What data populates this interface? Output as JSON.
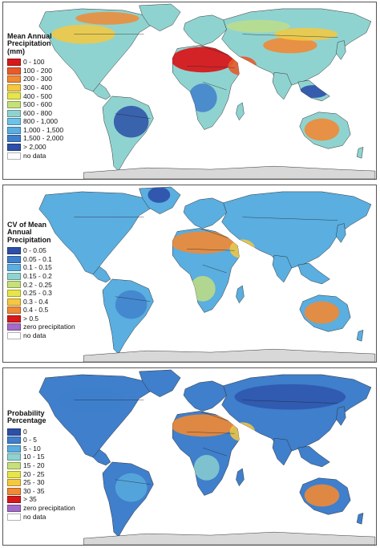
{
  "palettes": {
    "precip": [
      "#d7191c",
      "#e85a2a",
      "#f08a35",
      "#f6c83e",
      "#e6e64a",
      "#c6e07a",
      "#8fd3d0",
      "#5aaee0",
      "#3f7fcc",
      "#2c4fa8"
    ],
    "cv": [
      "#2c4fa8",
      "#3f7fcc",
      "#5aaee0",
      "#8fd3d0",
      "#c6e07a",
      "#e6e64a",
      "#f6c83e",
      "#f08a35",
      "#d7191c"
    ],
    "ocean": "#ffffff",
    "antarctica": "#d8d8d8",
    "zero_precip": "#a46bc7",
    "no_data": "#ffffff"
  },
  "panels": [
    {
      "legend_title": "Mean Annual\nPrecipitation\n(mm)",
      "legend": [
        {
          "label": "0 - 100",
          "color": "#d7191c"
        },
        {
          "label": "100 - 200",
          "color": "#e85a2a"
        },
        {
          "label": "200 - 300",
          "color": "#f08a35"
        },
        {
          "label": "300 - 400",
          "color": "#f6c83e"
        },
        {
          "label": "400 - 500",
          "color": "#e6e64a"
        },
        {
          "label": "500 - 600",
          "color": "#c6e07a"
        },
        {
          "label": "600 - 800",
          "color": "#8fd3d0"
        },
        {
          "label": "800 - 1,000",
          "color": "#6cc2e8"
        },
        {
          "label": "1,000 - 1,500",
          "color": "#5aaee0"
        },
        {
          "label": "1,500 - 2,000",
          "color": "#3f7fcc"
        },
        {
          "label": "> 2,000",
          "color": "#2c4fa8"
        },
        {
          "label": "no data",
          "color": "#ffffff"
        }
      ]
    },
    {
      "legend_title": "CV of Mean\nAnnual\nPrecipitation",
      "legend": [
        {
          "label": "0 - 0.05",
          "color": "#2c4fa8"
        },
        {
          "label": "0.05 - 0.1",
          "color": "#3f7fcc"
        },
        {
          "label": "0.1 - 0.15",
          "color": "#5aaee0"
        },
        {
          "label": "0.15 - 0.2",
          "color": "#8fd3d0"
        },
        {
          "label": "0.2 - 0.25",
          "color": "#c6e07a"
        },
        {
          "label": "0.25 - 0.3",
          "color": "#e6e64a"
        },
        {
          "label": "0.3 - 0.4",
          "color": "#f6c83e"
        },
        {
          "label": "0.4 - 0.5",
          "color": "#f08a35"
        },
        {
          "label": "> 0.5",
          "color": "#d7191c"
        },
        {
          "label": "zero precipitation",
          "color": "#a46bc7"
        },
        {
          "label": "no data",
          "color": "#ffffff"
        }
      ]
    },
    {
      "legend_title": "Probability\nPercentage",
      "legend": [
        {
          "label": "0",
          "color": "#2c4fa8"
        },
        {
          "label": "0 - 5",
          "color": "#3f7fcc"
        },
        {
          "label": "5 - 10",
          "color": "#5aaee0"
        },
        {
          "label": "10 - 15",
          "color": "#8fd3d0"
        },
        {
          "label": "15 - 20",
          "color": "#c6e07a"
        },
        {
          "label": "20 - 25",
          "color": "#e6e64a"
        },
        {
          "label": "25 - 30",
          "color": "#f6c83e"
        },
        {
          "label": "30 - 35",
          "color": "#f08a35"
        },
        {
          "label": "> 35",
          "color": "#d7191c"
        },
        {
          "label": "zero precipitation",
          "color": "#a46bc7"
        },
        {
          "label": "no data",
          "color": "#ffffff"
        }
      ]
    }
  ]
}
